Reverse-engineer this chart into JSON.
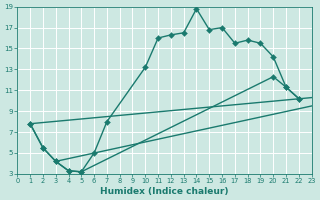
{
  "xlabel": "Humidex (Indice chaleur)",
  "background_color": "#cde8e2",
  "grid_color": "#ffffff",
  "line_color": "#1a7a6e",
  "xlim": [
    0,
    23
  ],
  "ylim": [
    3,
    19
  ],
  "xticks": [
    0,
    1,
    2,
    3,
    4,
    5,
    6,
    7,
    8,
    9,
    10,
    11,
    12,
    13,
    14,
    15,
    16,
    17,
    18,
    19,
    20,
    21,
    22,
    23
  ],
  "yticks": [
    3,
    5,
    7,
    9,
    11,
    13,
    15,
    17,
    19
  ],
  "curve1_x": [
    1,
    2,
    3,
    4,
    5,
    6,
    7,
    10,
    11,
    12,
    13,
    14,
    15,
    16,
    17,
    18,
    19,
    20,
    21,
    22
  ],
  "curve1_y": [
    7.8,
    5.5,
    4.2,
    3.3,
    3.2,
    5.0,
    8.0,
    13.2,
    16.0,
    16.3,
    16.5,
    18.8,
    16.8,
    17.0,
    15.5,
    15.8,
    15.5,
    14.2,
    11.3,
    10.2
  ],
  "curve2_x": [
    1,
    2,
    3,
    4,
    5,
    20,
    21,
    22
  ],
  "curve2_y": [
    7.8,
    5.5,
    4.2,
    3.3,
    3.2,
    12.3,
    11.3,
    10.2
  ],
  "line3_x": [
    1,
    23
  ],
  "line3_y": [
    7.8,
    10.3
  ],
  "line4_x": [
    3,
    23
  ],
  "line4_y": [
    4.2,
    9.5
  ],
  "marker_size": 3.0,
  "linewidth": 1.0
}
